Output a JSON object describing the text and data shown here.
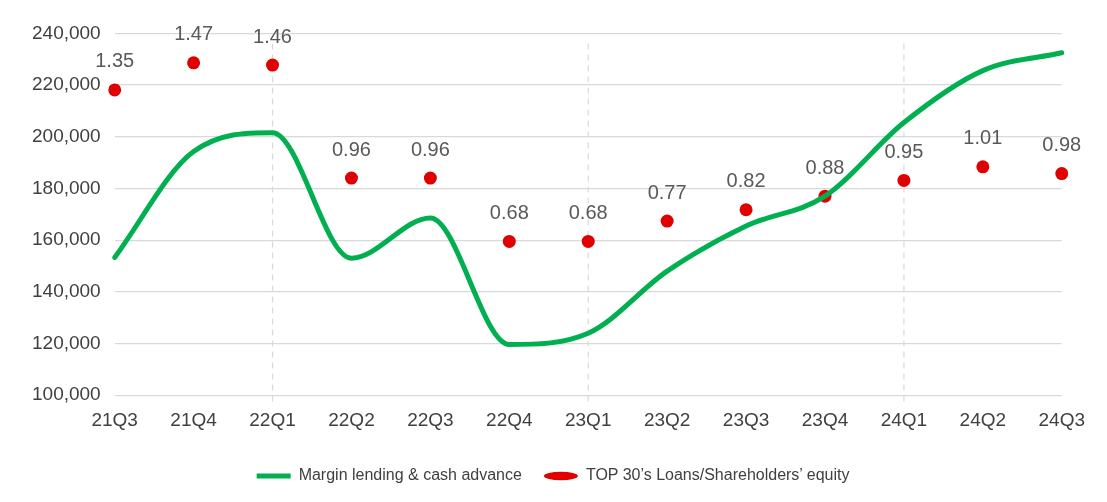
{
  "chart_data": {
    "type": "line",
    "categories": [
      "21Q3",
      "21Q4",
      "22Q1",
      "22Q2",
      "22Q3",
      "22Q4",
      "23Q1",
      "23Q2",
      "23Q3",
      "23Q4",
      "24Q1",
      "24Q2",
      "24Q3"
    ],
    "series": [
      {
        "name": "Margin lending & cash advance",
        "color": "#00b050",
        "values": [
          153300,
          194300,
          201600,
          153000,
          168600,
          119600,
          124000,
          148000,
          165500,
          177000,
          205500,
          225600,
          232500
        ]
      },
      {
        "name": "TOP 30’s Loans/Shareholders’ equity",
        "type": "scatter",
        "axis": "y2",
        "color": "#e00000",
        "values": [
          1.35,
          1.47,
          1.46,
          0.96,
          0.96,
          0.68,
          0.68,
          0.77,
          0.82,
          0.88,
          0.95,
          1.01,
          0.98
        ],
        "value_labels": [
          "1.35",
          "1.47",
          "1.46",
          "0.96",
          "0.96",
          "0.68",
          "0.68",
          "0.77",
          "0.82",
          "0.88",
          "0.95",
          "1.01",
          "0.98"
        ]
      }
    ],
    "ylim": [
      100000,
      240000
    ],
    "yticks": [
      {
        "value": 100000,
        "label": "100,000"
      },
      {
        "value": 120000,
        "label": "120,000"
      },
      {
        "value": 140000,
        "label": "140,000"
      },
      {
        "value": 160000,
        "label": "160,000"
      },
      {
        "value": 180000,
        "label": "180,000"
      },
      {
        "value": 200000,
        "label": "200,000"
      },
      {
        "value": 220000,
        "label": "220,000"
      },
      {
        "value": 240000,
        "label": "240,000"
      }
    ],
    "y2lim": [
      0,
      1.6
    ],
    "grid": "y",
    "legend": "bottom",
    "ref_lines": [
      {
        "axis": "x",
        "value": "22Q1",
        "color": "#d9d9d9",
        "line_style": "dashed"
      },
      {
        "axis": "x",
        "value": "23Q1",
        "color": "#d9d9d9",
        "line_style": "dashed"
      },
      {
        "axis": "x",
        "value": "24Q1",
        "color": "#d9d9d9",
        "line_style": "dashed"
      }
    ]
  }
}
